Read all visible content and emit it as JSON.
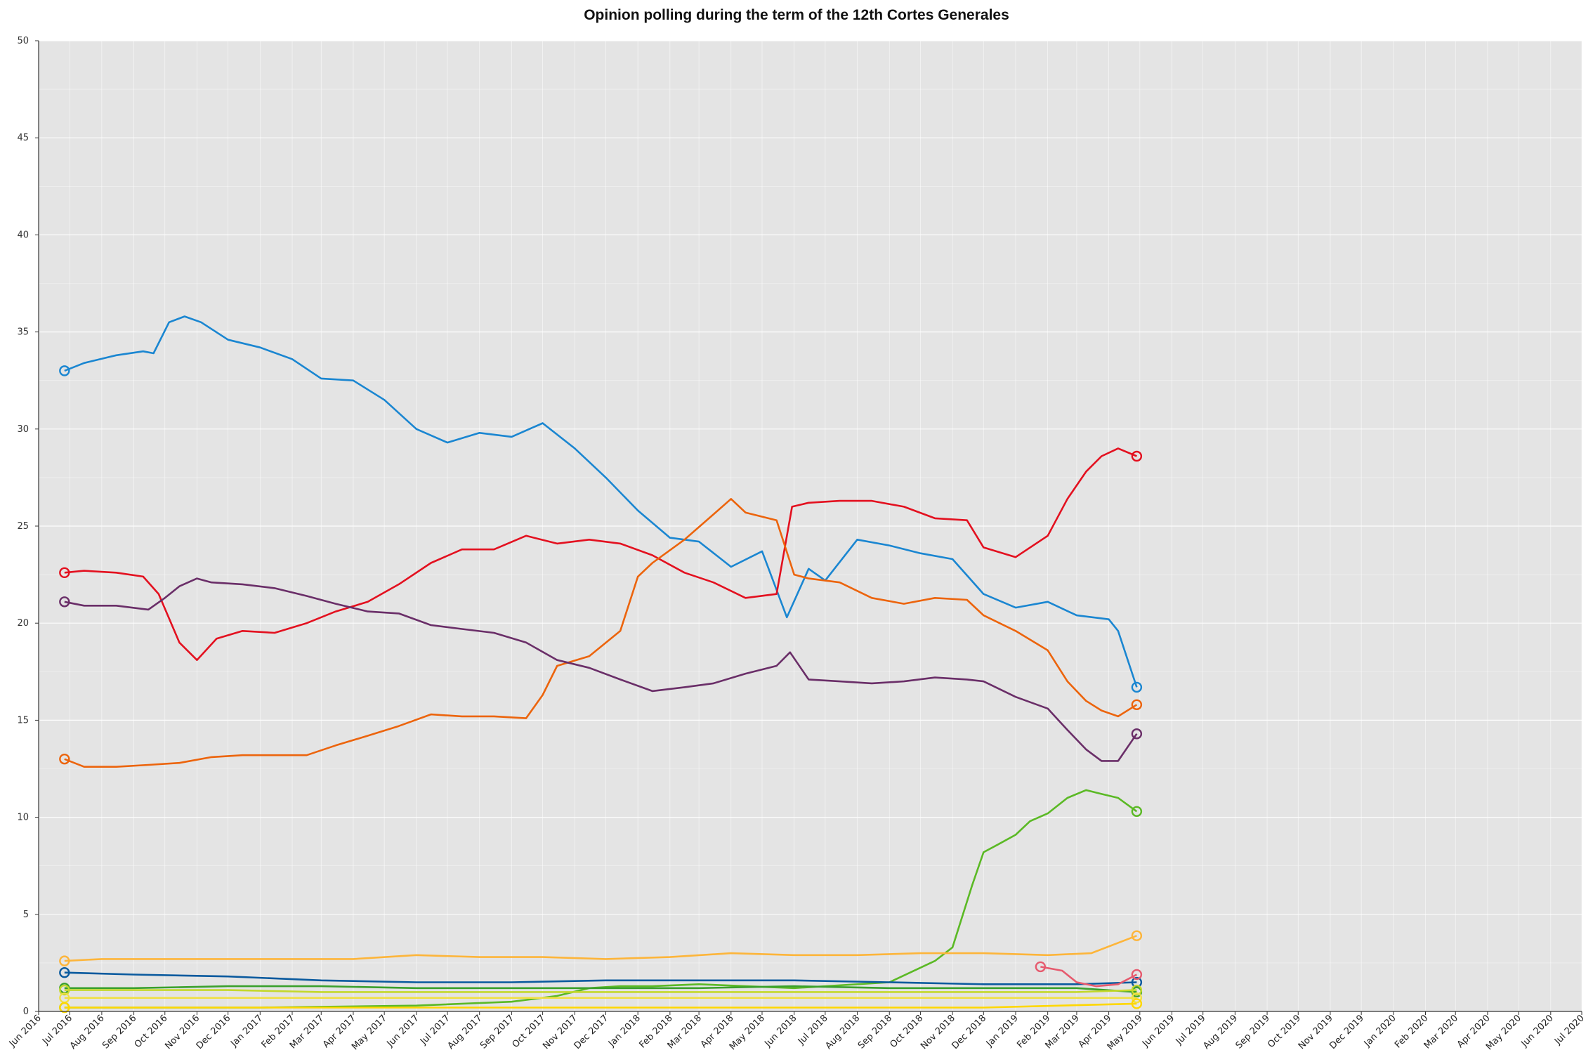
{
  "chart_data": {
    "type": "line",
    "title": "Opinion polling during the term of the 12th Cortes Generales",
    "xlabel": "",
    "ylabel": "",
    "ylim": [
      0,
      50
    ],
    "yticks": [
      0,
      5,
      10,
      15,
      20,
      25,
      30,
      35,
      40,
      45,
      50
    ],
    "xlim": [
      "2016-06-01",
      "2020-07-01"
    ],
    "xticks": [
      "Jun 2016",
      "Jul 2016",
      "Aug 2016",
      "Sep 2016",
      "Oct 2016",
      "Nov 2016",
      "Dec 2016",
      "Jan 2017",
      "Feb 2017",
      "Mar 2017",
      "Apr 2017",
      "May 2017",
      "Jun 2017",
      "Jul 2017",
      "Aug 2017",
      "Sep 2017",
      "Oct 2017",
      "Nov 2017",
      "Dec 2017",
      "Jan 2018",
      "Feb 2018",
      "Mar 2018",
      "Apr 2018",
      "May 2018",
      "Jun 2018",
      "Jul 2018",
      "Aug 2018",
      "Sep 2018",
      "Oct 2018",
      "Nov 2018",
      "Dec 2018",
      "Jan 2019",
      "Feb 2019",
      "Mar 2019",
      "Apr 2019",
      "May 2019",
      "Jun 2019",
      "Jul 2019",
      "Aug 2019",
      "Sep 2019",
      "Oct 2019",
      "Nov 2019",
      "Dec 2019",
      "Jan 2020",
      "Feb 2020",
      "Mar 2020",
      "Apr 2020",
      "May 2020",
      "Jun 2020",
      "Jul 2020"
    ],
    "grid": true,
    "background": "#e4e4e4",
    "series": [
      {
        "color": "#1a86d1",
        "x": [
          "2016-06-26",
          "2016-07-15",
          "2016-08-15",
          "2016-09-10",
          "2016-09-20",
          "2016-10-05",
          "2016-10-20",
          "2016-11-05",
          "2016-12-01",
          "2017-01-01",
          "2017-02-01",
          "2017-03-01",
          "2017-04-01",
          "2017-05-01",
          "2017-06-01",
          "2017-07-01",
          "2017-08-01",
          "2017-09-01",
          "2017-10-01",
          "2017-11-01",
          "2017-12-01",
          "2018-01-01",
          "2018-02-01",
          "2018-03-01",
          "2018-04-01",
          "2018-05-01",
          "2018-05-25",
          "2018-06-15",
          "2018-07-01",
          "2018-08-01",
          "2018-09-01",
          "2018-10-01",
          "2018-11-01",
          "2018-12-01",
          "2019-01-01",
          "2019-02-01",
          "2019-03-01",
          "2019-04-01",
          "2019-04-10",
          "2019-04-28"
        ],
        "y": [
          33.0,
          33.4,
          33.8,
          34.0,
          33.9,
          35.5,
          35.8,
          35.5,
          34.6,
          34.2,
          33.6,
          32.6,
          32.5,
          31.5,
          30.0,
          29.3,
          29.8,
          29.6,
          30.3,
          29.0,
          27.5,
          25.8,
          24.4,
          24.2,
          22.9,
          23.7,
          20.3,
          22.8,
          22.2,
          24.3,
          24.0,
          23.6,
          23.3,
          21.5,
          20.8,
          21.1,
          20.4,
          20.2,
          19.6,
          16.7
        ]
      },
      {
        "color": "#e3101f",
        "x": [
          "2016-06-26",
          "2016-07-15",
          "2016-08-15",
          "2016-09-10",
          "2016-09-25",
          "2016-10-15",
          "2016-11-01",
          "2016-11-20",
          "2016-12-15",
          "2017-01-15",
          "2017-02-15",
          "2017-03-15",
          "2017-04-15",
          "2017-05-15",
          "2017-06-15",
          "2017-07-15",
          "2017-08-15",
          "2017-09-15",
          "2017-10-15",
          "2017-11-15",
          "2017-12-15",
          "2018-01-15",
          "2018-02-15",
          "2018-03-15",
          "2018-04-15",
          "2018-05-15",
          "2018-05-30",
          "2018-06-15",
          "2018-07-15",
          "2018-08-15",
          "2018-09-15",
          "2018-10-15",
          "2018-11-15",
          "2018-12-01",
          "2019-01-01",
          "2019-02-01",
          "2019-02-20",
          "2019-03-10",
          "2019-03-25",
          "2019-04-10",
          "2019-04-28"
        ],
        "y": [
          22.6,
          22.7,
          22.6,
          22.4,
          21.5,
          19.0,
          18.1,
          19.2,
          19.6,
          19.5,
          20.0,
          20.6,
          21.1,
          22.0,
          23.1,
          23.8,
          23.8,
          24.5,
          24.1,
          24.3,
          24.1,
          23.5,
          22.6,
          22.1,
          21.3,
          21.5,
          26.0,
          26.2,
          26.3,
          26.3,
          26.0,
          25.4,
          25.3,
          23.9,
          23.4,
          24.5,
          26.4,
          27.8,
          28.6,
          29.0,
          28.6
        ]
      },
      {
        "color": "#ec640c",
        "x": [
          "2016-06-26",
          "2016-07-15",
          "2016-08-15",
          "2016-09-15",
          "2016-10-15",
          "2016-11-15",
          "2016-12-15",
          "2017-01-15",
          "2017-02-15",
          "2017-03-15",
          "2017-04-15",
          "2017-05-15",
          "2017-06-15",
          "2017-07-15",
          "2017-08-15",
          "2017-09-15",
          "2017-10-01",
          "2017-10-15",
          "2017-11-15",
          "2017-12-15",
          "2018-01-01",
          "2018-01-15",
          "2018-02-15",
          "2018-03-15",
          "2018-04-01",
          "2018-04-15",
          "2018-05-15",
          "2018-06-01",
          "2018-06-15",
          "2018-07-15",
          "2018-08-15",
          "2018-09-15",
          "2018-10-15",
          "2018-11-15",
          "2018-12-01",
          "2019-01-01",
          "2019-02-01",
          "2019-02-20",
          "2019-03-10",
          "2019-03-25",
          "2019-04-10",
          "2019-04-28"
        ],
        "y": [
          13.0,
          12.6,
          12.6,
          12.7,
          12.8,
          13.1,
          13.2,
          13.2,
          13.2,
          13.7,
          14.2,
          14.7,
          15.3,
          15.2,
          15.2,
          15.1,
          16.3,
          17.8,
          18.3,
          19.6,
          22.4,
          23.1,
          24.3,
          25.6,
          26.4,
          25.7,
          25.3,
          22.5,
          22.3,
          22.1,
          21.3,
          21.0,
          21.3,
          21.2,
          20.4,
          19.6,
          18.6,
          17.0,
          16.0,
          15.5,
          15.2,
          15.8
        ]
      },
      {
        "color": "#6a2e68",
        "x": [
          "2016-06-26",
          "2016-07-15",
          "2016-08-15",
          "2016-09-15",
          "2016-10-01",
          "2016-10-15",
          "2016-11-01",
          "2016-11-15",
          "2016-12-15",
          "2017-01-15",
          "2017-02-15",
          "2017-03-15",
          "2017-04-15",
          "2017-05-15",
          "2017-06-15",
          "2017-07-15",
          "2017-08-15",
          "2017-09-15",
          "2017-10-15",
          "2017-11-15",
          "2017-12-15",
          "2018-01-15",
          "2018-02-15",
          "2018-03-15",
          "2018-04-15",
          "2018-05-15",
          "2018-05-28",
          "2018-06-15",
          "2018-07-15",
          "2018-08-15",
          "2018-09-15",
          "2018-10-15",
          "2018-11-15",
          "2018-12-01",
          "2019-01-01",
          "2019-02-01",
          "2019-02-20",
          "2019-03-10",
          "2019-03-25",
          "2019-04-10",
          "2019-04-28"
        ],
        "y": [
          21.1,
          20.9,
          20.9,
          20.7,
          21.3,
          21.9,
          22.3,
          22.1,
          22.0,
          21.8,
          21.4,
          21.0,
          20.6,
          20.5,
          19.9,
          19.7,
          19.5,
          19.0,
          18.1,
          17.7,
          17.1,
          16.5,
          16.7,
          16.9,
          17.4,
          17.8,
          18.5,
          17.1,
          17.0,
          16.9,
          17.0,
          17.2,
          17.1,
          17.0,
          16.2,
          15.6,
          14.5,
          13.5,
          12.9,
          12.9,
          14.3
        ]
      },
      {
        "color": "#5bb925",
        "x": [
          "2016-06-26",
          "2017-01-01",
          "2017-06-01",
          "2017-09-01",
          "2017-10-15",
          "2017-11-15",
          "2017-12-15",
          "2018-01-15",
          "2018-03-01",
          "2018-06-01",
          "2018-09-01",
          "2018-10-15",
          "2018-11-01",
          "2018-11-20",
          "2018-12-01",
          "2018-12-15",
          "2019-01-01",
          "2019-01-15",
          "2019-02-01",
          "2019-02-20",
          "2019-03-10",
          "2019-03-25",
          "2019-04-10",
          "2019-04-28"
        ],
        "y": [
          0.2,
          0.2,
          0.3,
          0.5,
          0.8,
          1.2,
          1.3,
          1.3,
          1.4,
          1.2,
          1.5,
          2.6,
          3.3,
          6.5,
          8.2,
          8.6,
          9.1,
          9.8,
          10.2,
          11.0,
          11.4,
          11.2,
          11.0,
          10.3
        ]
      },
      {
        "color": "#fdb53a",
        "x": [
          "2016-06-26",
          "2016-08-01",
          "2016-10-01",
          "2016-12-01",
          "2017-02-01",
          "2017-04-01",
          "2017-06-01",
          "2017-08-01",
          "2017-10-01",
          "2017-12-01",
          "2018-02-01",
          "2018-04-01",
          "2018-06-01",
          "2018-08-01",
          "2018-10-01",
          "2018-12-01",
          "2019-02-01",
          "2019-03-15",
          "2019-04-28"
        ],
        "y": [
          2.6,
          2.7,
          2.7,
          2.7,
          2.7,
          2.7,
          2.9,
          2.8,
          2.8,
          2.7,
          2.8,
          3.0,
          2.9,
          2.9,
          3.0,
          3.0,
          2.9,
          3.0,
          3.9
        ]
      },
      {
        "color": "#0a5a9e",
        "x": [
          "2016-06-26",
          "2016-09-01",
          "2016-12-01",
          "2017-03-01",
          "2017-06-01",
          "2017-09-01",
          "2017-12-01",
          "2018-03-01",
          "2018-06-01",
          "2018-09-01",
          "2018-12-01",
          "2019-03-01",
          "2019-04-28"
        ],
        "y": [
          2.0,
          1.9,
          1.8,
          1.6,
          1.5,
          1.5,
          1.6,
          1.6,
          1.6,
          1.5,
          1.4,
          1.4,
          1.5
        ]
      },
      {
        "color": "#3aa02c",
        "x": [
          "2016-06-26",
          "2016-09-01",
          "2016-12-01",
          "2017-03-01",
          "2017-06-01",
          "2017-09-01",
          "2017-12-01",
          "2018-03-01",
          "2018-06-01",
          "2018-09-01",
          "2018-12-01",
          "2019-03-01",
          "2019-04-28"
        ],
        "y": [
          1.2,
          1.2,
          1.3,
          1.3,
          1.2,
          1.2,
          1.2,
          1.2,
          1.3,
          1.2,
          1.2,
          1.2,
          1.0
        ]
      },
      {
        "color": "#c4d82c",
        "x": [
          "2016-06-26",
          "2016-09-01",
          "2016-12-01",
          "2017-03-01",
          "2017-06-01",
          "2017-09-01",
          "2017-12-01",
          "2018-03-01",
          "2018-06-01",
          "2018-09-01",
          "2018-12-01",
          "2019-03-01",
          "2019-04-28"
        ],
        "y": [
          1.1,
          1.1,
          1.1,
          1.0,
          1.0,
          1.0,
          1.0,
          1.0,
          1.0,
          1.0,
          1.0,
          1.0,
          1.1
        ]
      },
      {
        "color": "#e65a6e",
        "x": [
          "2019-01-25",
          "2019-02-15",
          "2019-03-01",
          "2019-03-20",
          "2019-04-10",
          "2019-04-28"
        ],
        "y": [
          2.3,
          2.1,
          1.5,
          1.3,
          1.4,
          1.9
        ]
      },
      {
        "color": "#f0e046",
        "x": [
          "2016-06-26",
          "2016-12-01",
          "2017-06-01",
          "2017-12-01",
          "2018-06-01",
          "2018-12-01",
          "2019-04-28"
        ],
        "y": [
          0.7,
          0.7,
          0.7,
          0.7,
          0.7,
          0.7,
          0.7
        ]
      },
      {
        "color": "#ffd700",
        "x": [
          "2016-06-26",
          "2016-12-01",
          "2017-06-01",
          "2017-12-01",
          "2018-06-01",
          "2018-12-01",
          "2019-04-28"
        ],
        "y": [
          0.2,
          0.2,
          0.2,
          0.2,
          0.2,
          0.2,
          0.4
        ]
      }
    ]
  }
}
